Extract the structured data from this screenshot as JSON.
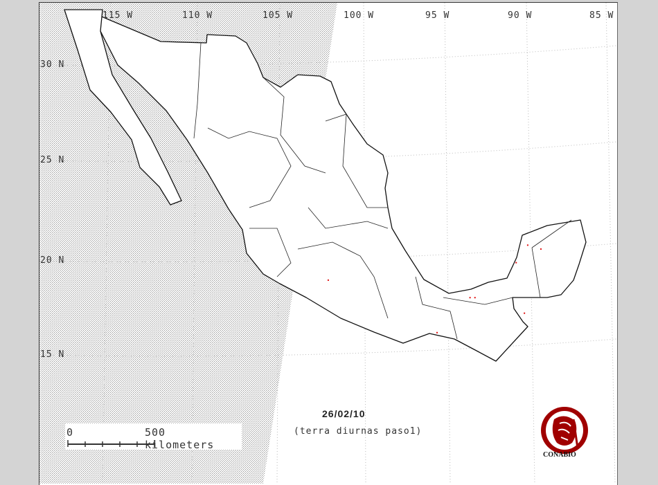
{
  "map": {
    "longitude_labels": [
      "115 W",
      "110 W",
      "105 W",
      "100 W",
      "95 W",
      "90 W",
      "85 W"
    ],
    "latitude_labels": [
      "30 N",
      "25 N",
      "20 N",
      "15 N"
    ],
    "date": "26/02/10",
    "subtitle": "(terra diurnas paso1)",
    "scale_bar": {
      "start_label": "0",
      "end_label": "500 kilometers",
      "divisions": 5
    },
    "logo_text": "CONABIO",
    "night_shade": "left side shaded (stippled gray)",
    "hotspot_color": "#e01010",
    "logo_color": "#a00000",
    "hotspots": [
      {
        "lon": -101.6,
        "lat": 18.9
      },
      {
        "lon": -95.0,
        "lat": 16.2
      },
      {
        "lon": -93.0,
        "lat": 18.0
      },
      {
        "lon": -92.7,
        "lat": 18.0
      },
      {
        "lon": -90.2,
        "lat": 19.8
      },
      {
        "lon": -89.5,
        "lat": 20.7
      },
      {
        "lon": -88.7,
        "lat": 20.5
      },
      {
        "lon": -89.7,
        "lat": 17.2
      }
    ]
  }
}
